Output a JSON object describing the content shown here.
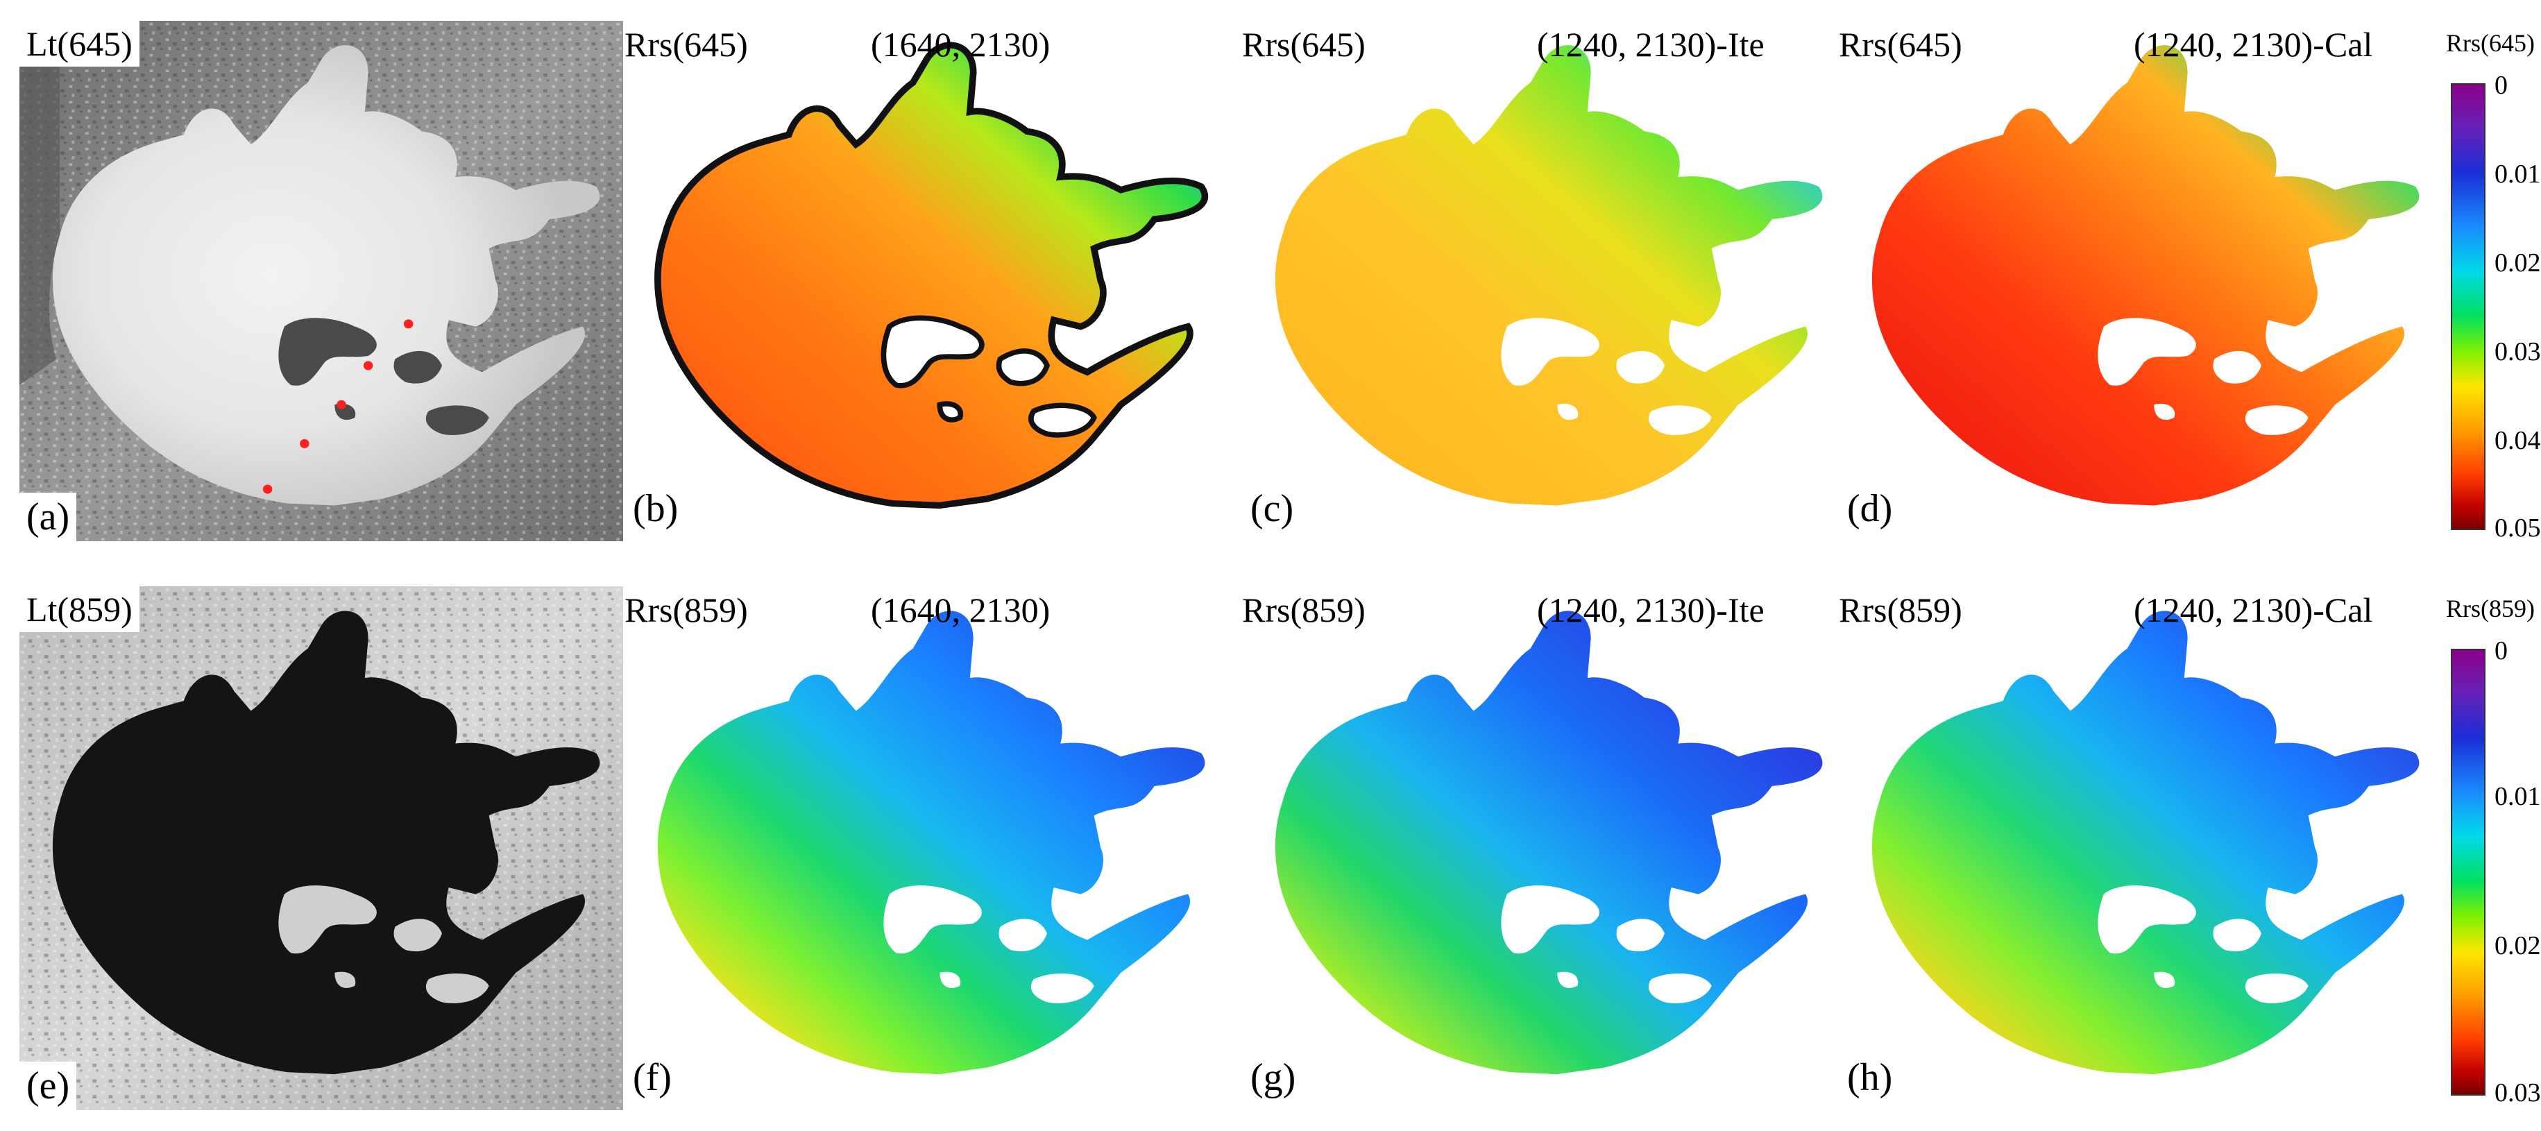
{
  "row1": {
    "input_label": "Lt(645)",
    "var_label": "Rrs(645)",
    "panels": [
      {
        "letter": "(a)"
      },
      {
        "letter": "(b)",
        "algo": "(1640, 2130)"
      },
      {
        "letter": "(c)",
        "algo": "(1240, 2130)-Ite"
      },
      {
        "letter": "(d)",
        "algo": "(1240, 2130)-Cal"
      }
    ],
    "colorbar": {
      "title": "Rrs(645)",
      "ticks": [
        "0",
        "0.01",
        "0.02",
        "0.03",
        "0.04",
        "0.05"
      ]
    }
  },
  "row2": {
    "input_label": "Lt(859)",
    "var_label": "Rrs(859)",
    "panels": [
      {
        "letter": "(e)"
      },
      {
        "letter": "(f)",
        "algo": "(1640, 2130)"
      },
      {
        "letter": "(g)",
        "algo": "(1240, 2130)-Ite"
      },
      {
        "letter": "(h)",
        "algo": "(1240, 2130)-Cal"
      }
    ],
    "colorbar": {
      "title": "Rrs(859)",
      "ticks": [
        "0",
        "0.01",
        "0.02",
        "0.03"
      ]
    }
  },
  "colors": {
    "marker": "#ff2020",
    "land_gray": "#8a8a8a",
    "water_dark": "#141414"
  }
}
